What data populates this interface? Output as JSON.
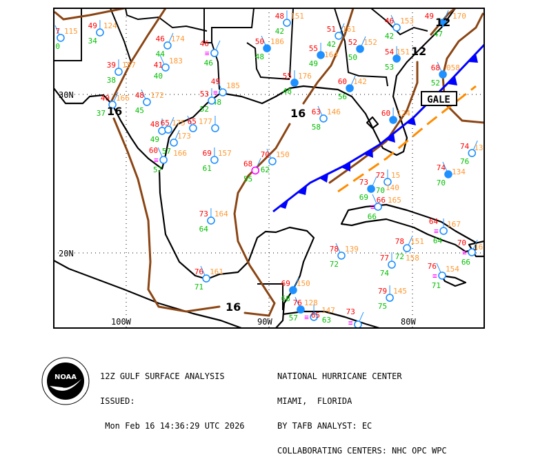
{
  "map": {
    "projection_note_units": "degrees",
    "grid": {
      "lat_labels": [
        "30N",
        "20N"
      ],
      "lon_labels": [
        "100W",
        "90W",
        "80W"
      ]
    },
    "isobar_labels": [
      "16",
      "16",
      "16",
      "12",
      "12"
    ],
    "gale_label": "GALE",
    "colors": {
      "temperature": "#ff0000",
      "dewpoint": "#00c000",
      "pressure": "#ff9933",
      "station": "#1e90ff",
      "isobar": "#8b4513",
      "cold_front": "#0000ff",
      "trough": "#ff8c00",
      "fog": "#ff00ff",
      "coast": "#000000"
    },
    "stations": [
      {
        "lon": -104.57,
        "lat": 33.57,
        "t": "7",
        "p": "115",
        "d": "0"
      },
      {
        "lon": -101.83,
        "lat": 33.91,
        "t": "49",
        "p": "124",
        "d": "34"
      },
      {
        "lon": -97.12,
        "lat": 33.09,
        "t": "46",
        "p": "174",
        "d": "44"
      },
      {
        "lon": -97.26,
        "lat": 31.7,
        "t": "41",
        "p": "183",
        "d": "40"
      },
      {
        "lon": -100.53,
        "lat": 31.43,
        "t": "39",
        "p": "157",
        "d": "38"
      },
      {
        "lon": -93.85,
        "lat": 32.61,
        "t": "46",
        "p": "",
        "d": "46",
        "fog": true
      },
      {
        "lon": -93.27,
        "lat": 30.13,
        "t": "49",
        "p": "185",
        "d": "48",
        "fog": true
      },
      {
        "lon": -94.04,
        "lat": 29.61,
        "t": "53",
        "p": "",
        "d": "52"
      },
      {
        "lon": -100.96,
        "lat": 29.35,
        "t": "40",
        "p": "166",
        "d": "37"
      },
      {
        "lon": -98.56,
        "lat": 29.52,
        "t": "48",
        "p": "172",
        "d": "45"
      },
      {
        "lon": -97.5,
        "lat": 27.7,
        "t": "48",
        "p": "",
        "d": "49"
      },
      {
        "lon": -97.07,
        "lat": 27.78,
        "t": "65",
        "p": "175",
        "d": ""
      },
      {
        "lon": -95.34,
        "lat": 27.87,
        "t": "65",
        "p": "177",
        "d": ""
      },
      {
        "lon": -93.8,
        "lat": 27.87,
        "t": "",
        "p": "",
        "d": ""
      },
      {
        "lon": -96.68,
        "lat": 26.96,
        "t": "",
        "p": "173",
        "d": "57"
      },
      {
        "lon": -97.4,
        "lat": 25.87,
        "t": "60",
        "p": "166",
        "d": "57",
        "fog": true
      },
      {
        "lon": -93.85,
        "lat": 25.87,
        "t": "69",
        "p": "157",
        "d": "61"
      },
      {
        "lon": -91.0,
        "lat": 25.2,
        "t": "68",
        "p": "",
        "d": "55",
        "missing": true
      },
      {
        "lon": -89.81,
        "lat": 25.78,
        "t": "70",
        "p": "150",
        "d": "62"
      },
      {
        "lon": -88.8,
        "lat": 34.52,
        "t": "48",
        "p": "151",
        "d": "42"
      },
      {
        "lon": -85.19,
        "lat": 33.7,
        "t": "51",
        "p": "161",
        "d": "42"
      },
      {
        "lon": -90.19,
        "lat": 32.91,
        "t": "50",
        "p": "186",
        "d": "48",
        "filled": true
      },
      {
        "lon": -86.44,
        "lat": 32.48,
        "t": "55",
        "p": "164",
        "d": "49",
        "filled": true
      },
      {
        "lon": -83.7,
        "lat": 32.87,
        "t": "52",
        "p": "152",
        "d": "50",
        "filled": true
      },
      {
        "lon": -81.15,
        "lat": 34.22,
        "t": "46",
        "p": "153",
        "d": "42"
      },
      {
        "lon": -88.27,
        "lat": 30.74,
        "t": "55",
        "p": "176",
        "d": "48",
        "filled": true
      },
      {
        "lon": -84.42,
        "lat": 30.39,
        "t": "60",
        "p": "142",
        "d": "56",
        "filled": true
      },
      {
        "lon": -86.25,
        "lat": 28.48,
        "t": "63",
        "p": "146",
        "d": "58"
      },
      {
        "lon": -81.15,
        "lat": 32.26,
        "t": "54",
        "p": "151",
        "d": "53",
        "filled": true
      },
      {
        "lon": -77.93,
        "lat": 34.52,
        "t": "49",
        "p": "170",
        "d": "47",
        "filled": true
      },
      {
        "lon": -77.93,
        "lat": 31.26,
        "t": "68",
        "p": "058",
        "d": "52",
        "filled": true
      },
      {
        "lon": -81.39,
        "lat": 28.39,
        "t": "60",
        "p": "124",
        "d": "",
        "filled": true
      },
      {
        "lon": -75.9,
        "lat": 26.3,
        "t": "74",
        "p": "13",
        "d": "76"
      },
      {
        "lon": -77.55,
        "lat": 24.96,
        "t": "74",
        "p": "134",
        "d": "70",
        "filled": true
      },
      {
        "lon": -81.78,
        "lat": 24.48,
        "t": "72",
        "p": "15",
        "d": "70"
      },
      {
        "lon": -82.93,
        "lat": 24.04,
        "t": "73",
        "p": "140",
        "d": "69",
        "filled": true
      },
      {
        "lon": -82.45,
        "lat": 22.91,
        "t": "66",
        "p": "165",
        "d": "66",
        "fog": true
      },
      {
        "lon": -77.88,
        "lat": 21.39,
        "t": "64",
        "p": "167",
        "d": "64",
        "fog": true
      },
      {
        "lon": -80.43,
        "lat": 20.3,
        "t": "78",
        "p": "151",
        "d": "72"
      },
      {
        "lon": -85.0,
        "lat": 19.83,
        "t": "78",
        "p": "139",
        "d": "72"
      },
      {
        "lon": -81.49,
        "lat": 19.26,
        "t": "77",
        "p": "158",
        "d": "74"
      },
      {
        "lon": -75.91,
        "lat": 20.04,
        "t": "70",
        "p": "16",
        "d": "66",
        "fog": true
      },
      {
        "lon": -77.98,
        "lat": 18.57,
        "t": "76",
        "p": "154",
        "d": "71",
        "fog": true
      },
      {
        "lon": -81.63,
        "lat": 17.17,
        "t": "79",
        "p": "145",
        "d": "75"
      },
      {
        "lon": -88.37,
        "lat": 17.65,
        "t": "69",
        "p": "150",
        "d": "68",
        "filled": true
      },
      {
        "lon": -87.84,
        "lat": 16.43,
        "t": "76",
        "p": "128",
        "d": "57",
        "filled": true
      },
      {
        "lon": -86.92,
        "lat": 15.96,
        "t": "65",
        "p": "147",
        "d": "63",
        "fog": true
      },
      {
        "lon": -83.85,
        "lat": 15.48,
        "t": "73",
        "p": "",
        "d": "",
        "fog": true
      },
      {
        "lon": -94.42,
        "lat": 18.39,
        "t": "76",
        "p": "161",
        "d": "71"
      },
      {
        "lon": -94.09,
        "lat": 22.04,
        "t": "73",
        "p": "164",
        "d": "64"
      }
    ]
  },
  "footer": {
    "title": "12Z GULF SURFACE ANALYSIS",
    "issued_label": "ISSUED:",
    "issued_time": " Mon Feb 16 14:36:29 UTC 2026",
    "center": "NATIONAL HURRICANE CENTER",
    "location": "MIAMI,  FLORIDA",
    "analyst": "BY TAFB ANALYST: EC",
    "collab": "COLLABORATING CENTERS: NHC OPC WPC",
    "logo_text": "NOAA"
  }
}
